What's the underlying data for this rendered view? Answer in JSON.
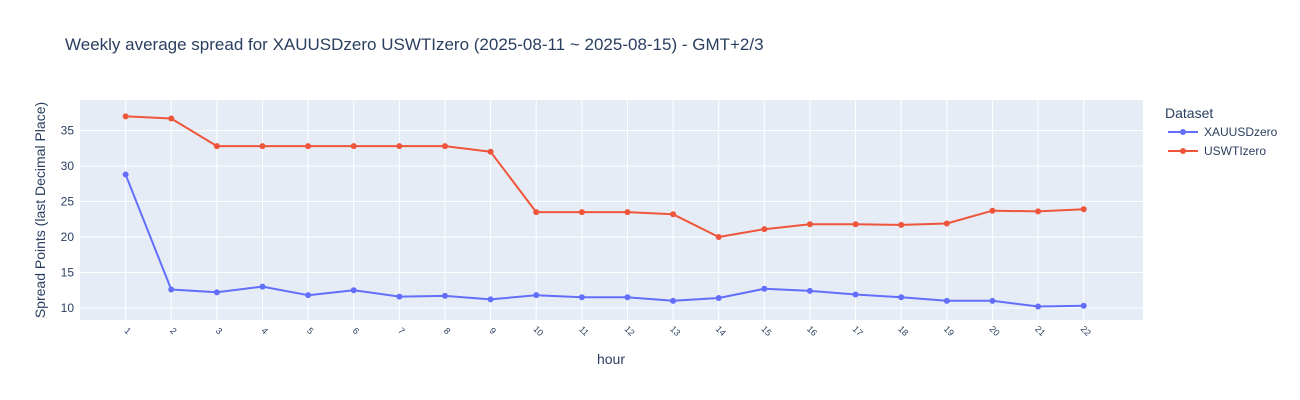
{
  "chart_data": {
    "type": "line",
    "title": "Weekly average spread for  XAUUSDzero USWTIzero (2025-08-11 ~ 2025-08-15) - GMT+2/3",
    "xlabel": "hour",
    "ylabel": "Spread Points (last Decimal Place)",
    "x": [
      1,
      2,
      3,
      4,
      5,
      6,
      7,
      8,
      9,
      10,
      11,
      12,
      13,
      14,
      15,
      16,
      17,
      18,
      19,
      20,
      21,
      22
    ],
    "xlim": [
      0,
      23.3
    ],
    "ylim": [
      8.3,
      39.3
    ],
    "yticks": [
      10,
      15,
      20,
      25,
      30,
      35
    ],
    "grid": true,
    "legend_title": "Dataset",
    "legend_position": "top-right",
    "series": [
      {
        "name": "XAUUSDzero",
        "color": "#636efa",
        "values": [
          28.8,
          12.6,
          12.2,
          13.0,
          11.8,
          12.5,
          11.6,
          11.7,
          11.2,
          11.8,
          11.5,
          11.5,
          11.0,
          11.4,
          12.7,
          12.4,
          11.9,
          11.5,
          11.0,
          11.0,
          10.2,
          10.3
        ]
      },
      {
        "name": "USWTIzero",
        "color": "#ef553b",
        "values": [
          37.0,
          36.7,
          32.8,
          32.8,
          32.8,
          32.8,
          32.8,
          32.8,
          32.0,
          23.5,
          23.5,
          23.5,
          23.2,
          20.0,
          21.1,
          21.8,
          21.8,
          21.7,
          21.9,
          23.7,
          23.6,
          23.9
        ]
      }
    ]
  }
}
